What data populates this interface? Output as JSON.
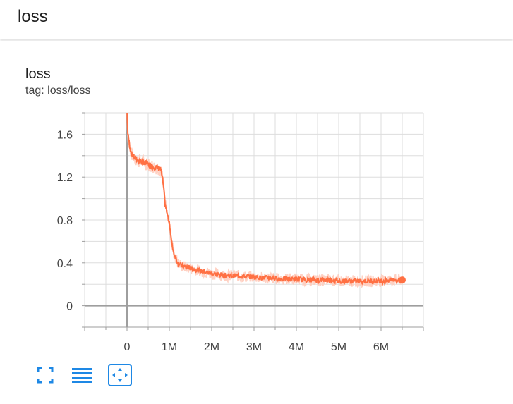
{
  "header": {
    "title": "loss"
  },
  "card": {
    "title": "loss",
    "tag": "tag: loss/loss"
  },
  "colors": {
    "series": "#ff7043",
    "series_raw": "#ffccbc",
    "axis": "#9e9e9e",
    "grid": "#dddddd",
    "icon": "#1e88e5"
  },
  "toolbar": {
    "buttons": [
      {
        "icon": "fullscreen-icon"
      },
      {
        "icon": "list-lines-icon"
      },
      {
        "icon": "fit-domain-icon"
      }
    ]
  },
  "chart_data": {
    "type": "line",
    "title": "",
    "xlabel": "",
    "ylabel": "",
    "xlim": [
      -1000000,
      7000000
    ],
    "ylim": [
      -0.2,
      1.8
    ],
    "xticks": [
      0,
      1000000,
      2000000,
      3000000,
      4000000,
      5000000,
      6000000
    ],
    "xtick_labels": [
      "0",
      "1M",
      "2M",
      "3M",
      "4M",
      "5M",
      "6M"
    ],
    "yticks": [
      0,
      0.4,
      0.8,
      1.2,
      1.6
    ],
    "ytick_labels": [
      "0",
      "0.4",
      "0.8",
      "1.2",
      "1.6"
    ],
    "grid": true,
    "series": [
      {
        "x": [
          0,
          20000,
          60000,
          100000,
          200000,
          300000,
          400000,
          500000,
          600000,
          700000,
          800000,
          850000,
          900000,
          950000,
          1000000,
          1050000,
          1100000,
          1150000,
          1200000,
          1300000,
          1400000,
          1500000,
          1600000,
          1700000,
          1800000,
          1900000,
          2000000,
          2200000,
          2400000,
          2600000,
          2800000,
          3000000,
          3200000,
          3400000,
          3600000,
          3800000,
          4000000,
          4200000,
          4400000,
          4600000,
          4800000,
          5000000,
          5200000,
          5400000,
          5600000,
          5800000,
          6000000,
          6200000,
          6400000,
          6500000
        ],
        "y": [
          1.85,
          1.6,
          1.5,
          1.42,
          1.37,
          1.35,
          1.34,
          1.32,
          1.3,
          1.29,
          1.27,
          1.15,
          0.95,
          0.85,
          0.78,
          0.6,
          0.5,
          0.45,
          0.4,
          0.37,
          0.36,
          0.35,
          0.34,
          0.33,
          0.32,
          0.31,
          0.3,
          0.29,
          0.28,
          0.28,
          0.27,
          0.27,
          0.26,
          0.26,
          0.25,
          0.25,
          0.25,
          0.24,
          0.24,
          0.24,
          0.24,
          0.23,
          0.23,
          0.23,
          0.23,
          0.23,
          0.23,
          0.24,
          0.24,
          0.24
        ]
      }
    ]
  }
}
